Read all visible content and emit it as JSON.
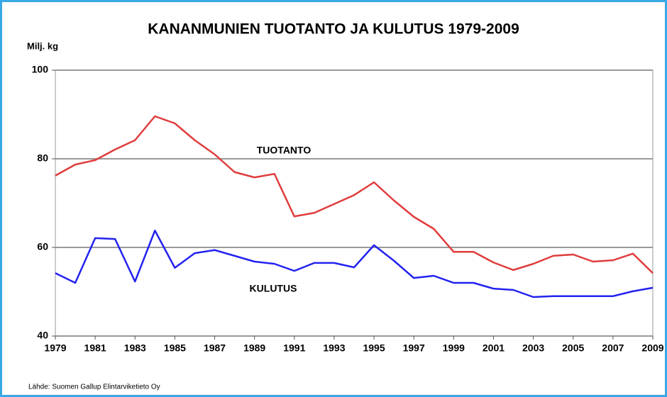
{
  "chart_data": {
    "type": "line",
    "title": "KANANMUNIEN TUOTANTO JA KULUTUS 1979-2009",
    "y_axis_label": "Milj. kg",
    "source": "Lähde: Suomen Gallup Elintarviketieto Oy",
    "annotations": [
      "TUOTANTO",
      "KULUTUS"
    ],
    "x": [
      1979,
      1980,
      1981,
      1982,
      1983,
      1984,
      1985,
      1986,
      1987,
      1988,
      1989,
      1990,
      1991,
      1992,
      1993,
      1994,
      1995,
      1996,
      1997,
      1998,
      1999,
      2000,
      2001,
      2002,
      2003,
      2004,
      2005,
      2006,
      2007,
      2008,
      2009
    ],
    "series": [
      {
        "name": "TUOTANTO",
        "color": "#e03c3c",
        "values": [
          76.2,
          78.7,
          79.7,
          82.1,
          84.2,
          89.6,
          88,
          84.2,
          81,
          77,
          75.8,
          76.6,
          67,
          67.8,
          69.8,
          71.8,
          74.7,
          70.6,
          66.9,
          64.2,
          59,
          59,
          56.6,
          54.9,
          56.3,
          58.1,
          58.4,
          56.8,
          57.1,
          58.6,
          54.2
        ]
      },
      {
        "name": "KULUTUS",
        "color": "#2323f0",
        "values": [
          54.2,
          52,
          62.1,
          61.9,
          52.3,
          63.8,
          55.4,
          58.7,
          59.4,
          58.1,
          56.8,
          56.3,
          54.7,
          56.5,
          56.5,
          55.5,
          60.5,
          57,
          53.1,
          53.6,
          52,
          52,
          50.7,
          50.4,
          48.8,
          49,
          49,
          49,
          49,
          50.1,
          50.9
        ]
      }
    ],
    "xlim": [
      1979,
      2009
    ],
    "xticks": [
      1979,
      1981,
      1983,
      1985,
      1987,
      1989,
      1991,
      1993,
      1995,
      1997,
      1999,
      2001,
      2003,
      2005,
      2007,
      2009
    ],
    "ylim": [
      40,
      100
    ],
    "yticks": [
      40,
      60,
      80,
      100
    ],
    "grid": true
  }
}
